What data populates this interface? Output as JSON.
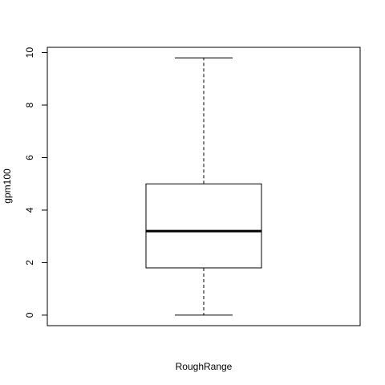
{
  "chart_data": {
    "type": "boxplot",
    "xlabel": "RoughRange",
    "ylabel": "gpm100",
    "ylim": [
      -0.4,
      10.2
    ],
    "yticks": [
      0,
      2,
      4,
      6,
      8,
      10
    ],
    "box": {
      "whisker_low": 0,
      "q1": 1.8,
      "median": 3.2,
      "q3": 5.0,
      "whisker_high": 9.8
    },
    "grid": false
  }
}
